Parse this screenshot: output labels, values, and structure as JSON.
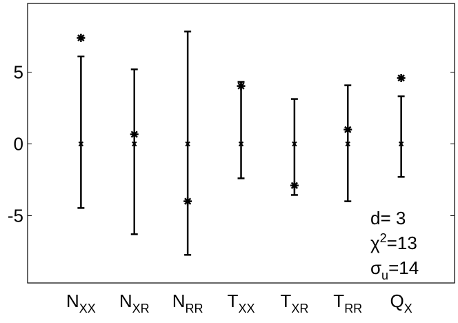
{
  "chart_data": {
    "type": "errorbar",
    "categories": [
      {
        "label": "N",
        "subscript": "XX"
      },
      {
        "label": "N",
        "subscript": "XR"
      },
      {
        "label": "N",
        "subscript": "RR"
      },
      {
        "label": "T",
        "subscript": "XX"
      },
      {
        "label": "T",
        "subscript": "XR"
      },
      {
        "label": "T",
        "subscript": "RR"
      },
      {
        "label": "Q",
        "subscript": "X"
      }
    ],
    "values": [
      0,
      0,
      0,
      0,
      0,
      0,
      0
    ],
    "upper": [
      6.1,
      5.2,
      7.84,
      4.33,
      3.13,
      4.09,
      3.32
    ],
    "lower": [
      -4.47,
      -6.3,
      -7.74,
      -2.4,
      -3.56,
      -4.0,
      -2.3
    ],
    "points": [
      7.4,
      0.67,
      -4.0,
      4.04,
      -2.9,
      1.0,
      4.6
    ],
    "color": "#000000",
    "ylim": [
      -9.7,
      9.8
    ],
    "yticks": [
      -5,
      0,
      5
    ],
    "annotations": [
      {
        "base": "d= 3"
      },
      {
        "base": "χ",
        "sup": "2",
        "rest": "=13"
      },
      {
        "base": "σ",
        "sub": "u",
        "rest": "=14"
      }
    ]
  }
}
